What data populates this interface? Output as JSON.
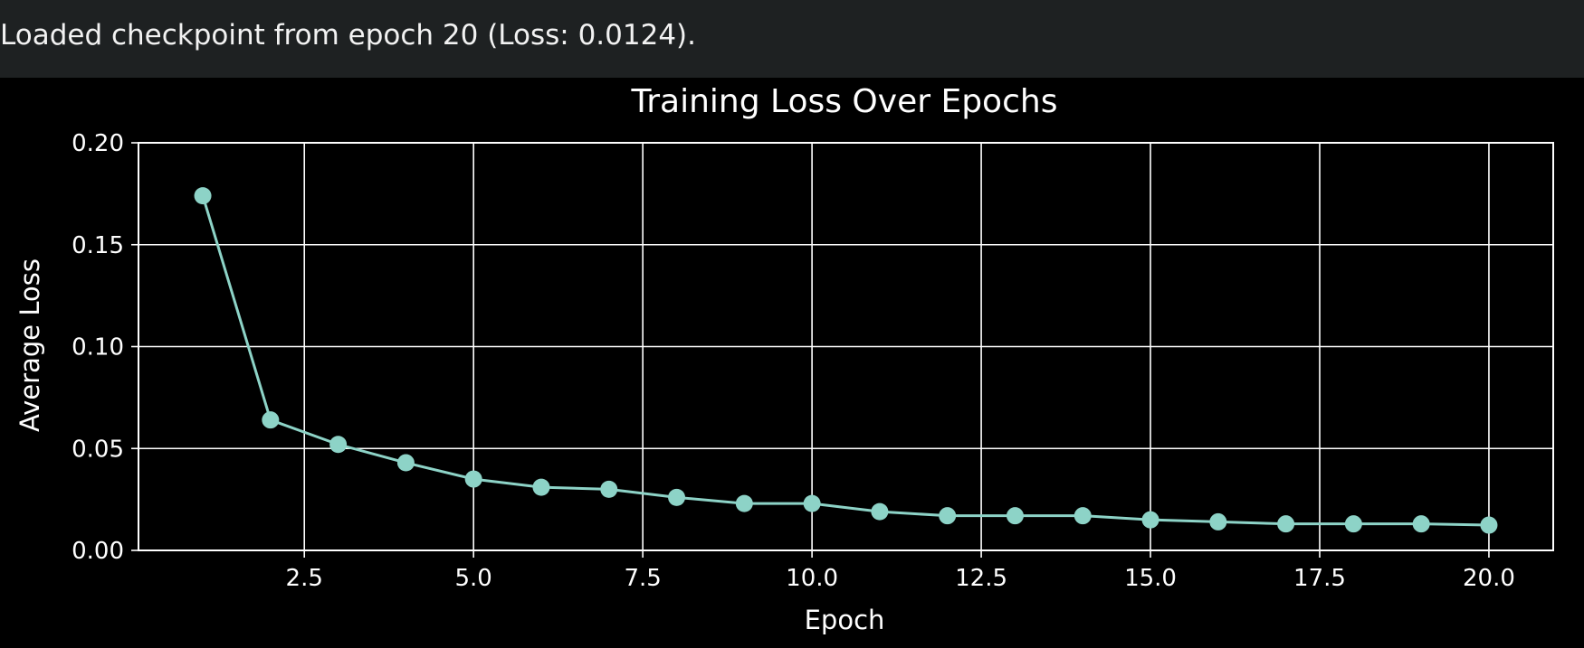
{
  "output": {
    "text": "Loaded checkpoint from epoch 20 (Loss: 0.0124)."
  },
  "colors": {
    "background": "#000000",
    "output_background": "#1e2122",
    "series": "#8dd3c7",
    "grid": "#ffffff",
    "text": "#ffffff"
  },
  "chart_data": {
    "type": "line",
    "title": "Training Loss Over Epochs",
    "xlabel": "Epoch",
    "ylabel": "Average Loss",
    "grid": true,
    "markers": "circle",
    "xlim": [
      0.05,
      20.95
    ],
    "ylim": [
      0,
      0.2
    ],
    "xticks": [
      2.5,
      5.0,
      7.5,
      10.0,
      12.5,
      15.0,
      17.5,
      20.0
    ],
    "xtick_labels": [
      "2.5",
      "5.0",
      "7.5",
      "10.0",
      "12.5",
      "15.0",
      "17.5",
      "20.0"
    ],
    "yticks": [
      0.0,
      0.05,
      0.1,
      0.15,
      0.2
    ],
    "ytick_labels": [
      "0.00",
      "0.05",
      "0.10",
      "0.15",
      "0.20"
    ],
    "x": [
      1,
      2,
      3,
      4,
      5,
      6,
      7,
      8,
      9,
      10,
      11,
      12,
      13,
      14,
      15,
      16,
      17,
      18,
      19,
      20
    ],
    "series": [
      {
        "values": [
          0.174,
          0.064,
          0.052,
          0.043,
          0.035,
          0.031,
          0.03,
          0.026,
          0.023,
          0.023,
          0.019,
          0.017,
          0.017,
          0.017,
          0.015,
          0.014,
          0.013,
          0.013,
          0.013,
          0.0124
        ]
      }
    ]
  }
}
